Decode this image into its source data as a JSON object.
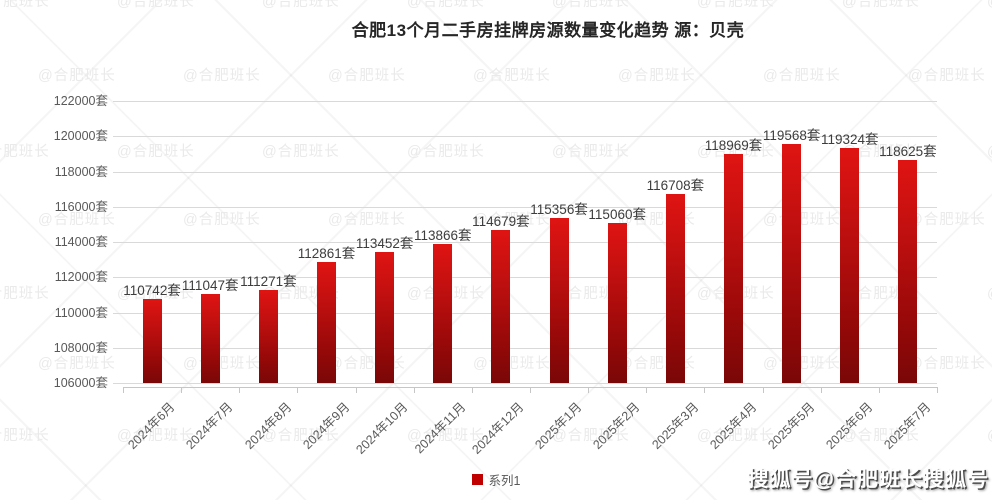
{
  "title": "合肥13个月二手房挂牌房源数量变化趋势 源：贝壳",
  "chart_data": {
    "type": "bar",
    "title": "合肥13个月二手房挂牌房源数量变化趋势 源：贝壳",
    "categories": [
      "2024年6月",
      "2024年7月",
      "2024年8月",
      "2024年9月",
      "2024年10月",
      "2024年11月",
      "2024年12月",
      "2025年1月",
      "2025年2月",
      "2025年3月",
      "2025年4月",
      "2025年5月",
      "2025年6月",
      "2025年7月"
    ],
    "values": [
      110742,
      111047,
      111271,
      112861,
      113452,
      113866,
      114679,
      115356,
      115060,
      116708,
      118969,
      119568,
      119324,
      118625
    ],
    "unit": "套",
    "series": [
      {
        "name": "系列1"
      }
    ],
    "xlabel": "",
    "ylabel": "",
    "ylim": [
      106000,
      122000
    ],
    "ytick_step": 2000,
    "ytick_labels": [
      "122000套",
      "120000套",
      "118000套",
      "116000套",
      "114000套",
      "112000套",
      "110000套",
      "108000套",
      "106000套"
    ],
    "grid": true,
    "legend_position": "bottom"
  },
  "legend": {
    "label": "系列1"
  },
  "watermarks": {
    "tile_text": "@合肥班长",
    "sohu_badge": "搜狐号@合肥班长搜狐号"
  },
  "colors": {
    "bar_top": "#df1412",
    "bar_mid1": "#c31010",
    "bar_mid2": "#9a0909",
    "bar_bottom": "#7a0707",
    "legend_swatch": "#c00000",
    "grid": "#d9d9d9",
    "axis_line": "#c6c6c6",
    "axis_text": "#595959",
    "data_label": "#3d3d3d",
    "title_text": "#262626",
    "watermark": "#eaeaea"
  }
}
